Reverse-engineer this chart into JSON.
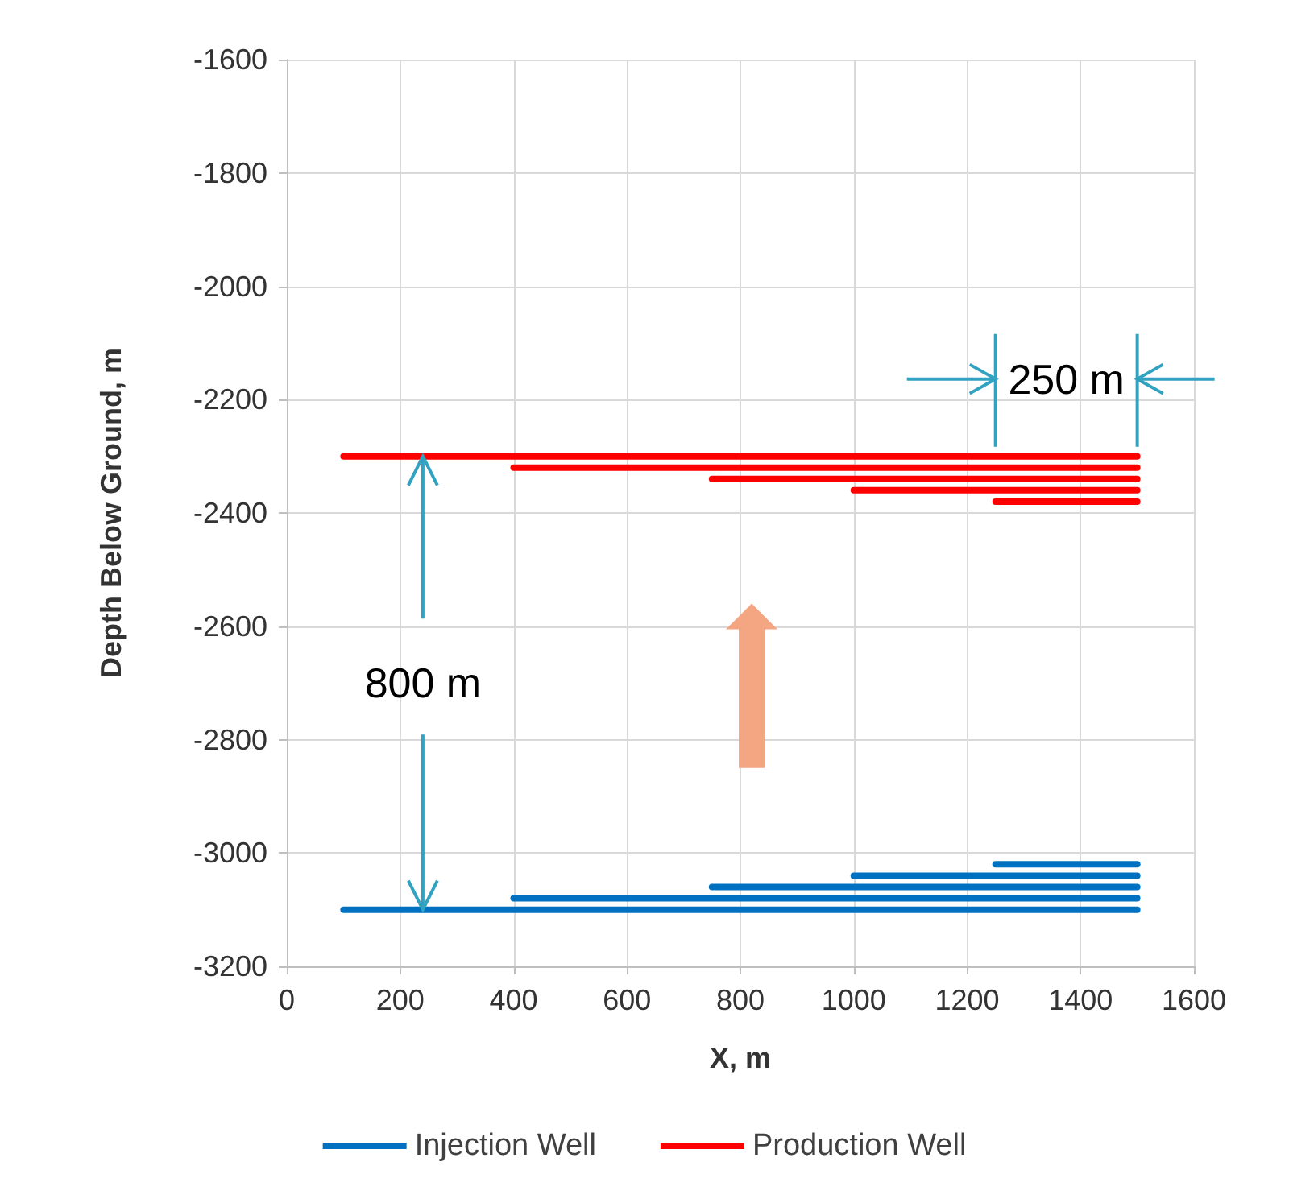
{
  "chart_data": {
    "type": "line",
    "xlabel": "X, m",
    "ylabel": "Depth Below Ground, m",
    "xlim": [
      0,
      1600
    ],
    "xticks": [
      0,
      200,
      400,
      600,
      800,
      1000,
      1200,
      1400,
      1600
    ],
    "ylim": [
      -3200,
      -1600
    ],
    "yticks": [
      -3200,
      -3000,
      -2800,
      -2600,
      -2400,
      -2200,
      -2000,
      -1800,
      -1600
    ],
    "grid": true,
    "legend": "bottom",
    "marker": "none",
    "line_style": "solid",
    "series": [
      {
        "name": "Injection Well",
        "color": "#0070c0",
        "x": [
          100,
          1500
        ],
        "values": [
          -3100,
          -3100
        ]
      },
      {
        "color": "#0070c0",
        "x": [
          400,
          1500
        ],
        "values": [
          -3080,
          -3080
        ]
      },
      {
        "color": "#0070c0",
        "x": [
          750,
          1500
        ],
        "values": [
          -3060,
          -3060
        ]
      },
      {
        "color": "#0070c0",
        "x": [
          1000,
          1500
        ],
        "values": [
          -3040,
          -3040
        ]
      },
      {
        "color": "#0070c0",
        "x": [
          1250,
          1500
        ],
        "values": [
          -3020,
          -3020
        ]
      },
      {
        "name": "Production Well",
        "color": "#ff0000",
        "x": [
          100,
          1500
        ],
        "values": [
          -2300,
          -2300
        ]
      },
      {
        "color": "#ff0000",
        "x": [
          400,
          1500
        ],
        "values": [
          -2320,
          -2320
        ]
      },
      {
        "color": "#ff0000",
        "x": [
          750,
          1500
        ],
        "values": [
          -2340,
          -2340
        ]
      },
      {
        "color": "#ff0000",
        "x": [
          1000,
          1500
        ],
        "values": [
          -2360,
          -2360
        ]
      },
      {
        "color": "#ff0000",
        "x": [
          1250,
          1500
        ],
        "values": [
          -2380,
          -2380
        ]
      }
    ],
    "annotations": [
      {
        "text": "800 m",
        "x": 240,
        "y": -2300
      },
      "250 m"
    ]
  }
}
